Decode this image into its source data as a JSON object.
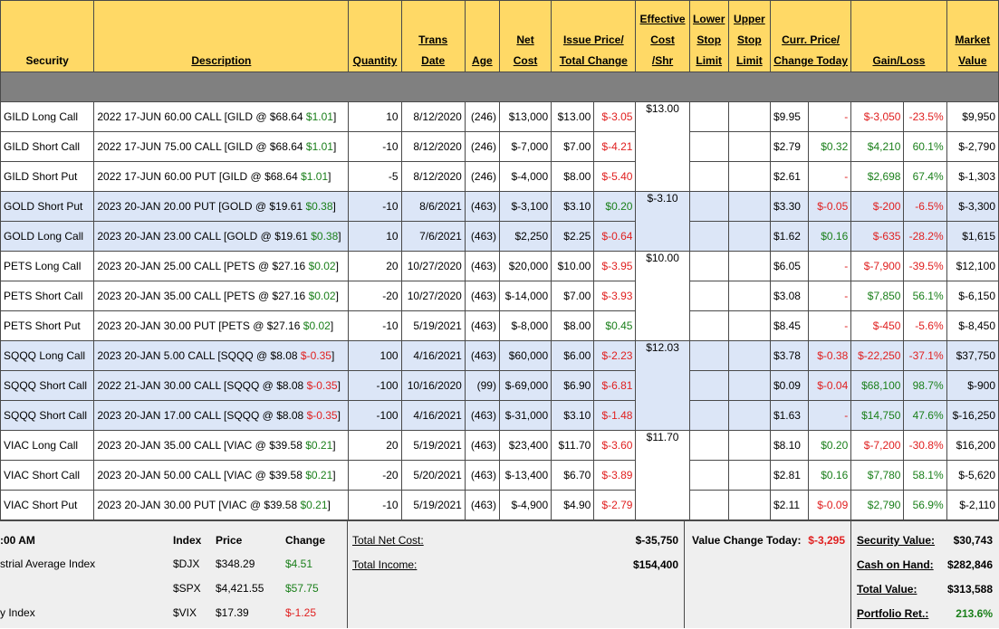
{
  "headers": {
    "security": "Security",
    "description": "Description",
    "quantity": "Quantity",
    "trans_1": "Trans",
    "trans_2": "Date",
    "age": "Age",
    "net_1": "Net",
    "net_2": "Cost",
    "issue_1": "Issue Price/",
    "issue_2": "Total Change",
    "eff_1": "Effective",
    "eff_2": "Cost",
    "eff_3": "/Shr",
    "lower_1": "Lower",
    "lower_2": "Stop",
    "lower_3": "Limit",
    "upper_1": "Upper",
    "upper_2": "Stop",
    "upper_3": "Limit",
    "curr_1": "Curr. Price/",
    "curr_2": "Change Today",
    "gain": "Gain/Loss",
    "mv_1": "Market",
    "mv_2": "Value"
  },
  "rows": [
    {
      "security": "GILD Long Call",
      "desc": "2022 17-JUN 60.00 CALL [GILD @ $68.64",
      "desc_chg": "$1.01",
      "desc_pos": true,
      "qty": "10",
      "date": "8/12/2020",
      "age": "(246)",
      "net": "$13,000",
      "issue": "$13.00",
      "tchg": "$-3.05",
      "tchg_pos": false,
      "eff": "$13.00",
      "curr": "$9.95",
      "ctoday": "-",
      "ctoday_cls": "neg",
      "gain": "$-3,050",
      "gain_pos": false,
      "pct": "-23.5%",
      "mv": "$9,950",
      "blue": false
    },
    {
      "security": "GILD Short Call",
      "desc": "2022 17-JUN 75.00 CALL [GILD @ $68.64",
      "desc_chg": "$1.01",
      "desc_pos": true,
      "qty": "-10",
      "date": "8/12/2020",
      "age": "(246)",
      "net": "$-7,000",
      "issue": "$7.00",
      "tchg": "$-4.21",
      "tchg_pos": false,
      "eff": "",
      "curr": "$2.79",
      "ctoday": "$0.32",
      "ctoday_cls": "pos",
      "gain": "$4,210",
      "gain_pos": true,
      "pct": "60.1%",
      "mv": "$-2,790",
      "blue": false
    },
    {
      "security": "GILD Short Put",
      "desc": "2022 17-JUN 60.00 PUT [GILD @ $68.64",
      "desc_chg": "$1.01",
      "desc_pos": true,
      "qty": "-5",
      "date": "8/12/2020",
      "age": "(246)",
      "net": "$-4,000",
      "issue": "$8.00",
      "tchg": "$-5.40",
      "tchg_pos": false,
      "eff": "",
      "curr": "$2.61",
      "ctoday": "-",
      "ctoday_cls": "neg",
      "gain": "$2,698",
      "gain_pos": true,
      "pct": "67.4%",
      "mv": "$-1,303",
      "blue": false
    },
    {
      "security": "GOLD Short Put",
      "desc": "2023 20-JAN 20.00 PUT [GOLD @ $19.61",
      "desc_chg": "$0.38",
      "desc_pos": true,
      "qty": "-10",
      "date": "8/6/2021",
      "age": "(463)",
      "net": "$-3,100",
      "issue": "$3.10",
      "tchg": "$0.20",
      "tchg_pos": true,
      "eff": "$-3.10",
      "curr": "$3.30",
      "ctoday": "$-0.05",
      "ctoday_cls": "neg",
      "gain": "$-200",
      "gain_pos": false,
      "pct": "-6.5%",
      "mv": "$-3,300",
      "blue": true
    },
    {
      "security": "GOLD Long Call",
      "desc": "2023 20-JAN 23.00 CALL [GOLD @ $19.61",
      "desc_chg": "$0.38",
      "desc_pos": true,
      "qty": "10",
      "date": "7/6/2021",
      "age": "(463)",
      "net": "$2,250",
      "issue": "$2.25",
      "tchg": "$-0.64",
      "tchg_pos": false,
      "eff": "",
      "curr": "$1.62",
      "ctoday": "$0.16",
      "ctoday_cls": "pos",
      "gain": "$-635",
      "gain_pos": false,
      "pct": "-28.2%",
      "mv": "$1,615",
      "blue": true
    },
    {
      "security": "PETS Long Call",
      "desc": "2023 20-JAN 25.00 CALL [PETS @ $27.16",
      "desc_chg": "$0.02",
      "desc_pos": true,
      "qty": "20",
      "date": "10/27/2020",
      "age": "(463)",
      "net": "$20,000",
      "issue": "$10.00",
      "tchg": "$-3.95",
      "tchg_pos": false,
      "eff": "$10.00",
      "curr": "$6.05",
      "ctoday": "-",
      "ctoday_cls": "neg",
      "gain": "$-7,900",
      "gain_pos": false,
      "pct": "-39.5%",
      "mv": "$12,100",
      "blue": false
    },
    {
      "security": "PETS Short Call",
      "desc": "2023 20-JAN 35.00 CALL [PETS @ $27.16",
      "desc_chg": "$0.02",
      "desc_pos": true,
      "qty": "-20",
      "date": "10/27/2020",
      "age": "(463)",
      "net": "$-14,000",
      "issue": "$7.00",
      "tchg": "$-3.93",
      "tchg_pos": false,
      "eff": "",
      "curr": "$3.08",
      "ctoday": "-",
      "ctoday_cls": "neg",
      "gain": "$7,850",
      "gain_pos": true,
      "pct": "56.1%",
      "mv": "$-6,150",
      "blue": false
    },
    {
      "security": "PETS Short Put",
      "desc": "2023 20-JAN 30.00 PUT [PETS @ $27.16",
      "desc_chg": "$0.02",
      "desc_pos": true,
      "qty": "-10",
      "date": "5/19/2021",
      "age": "(463)",
      "net": "$-8,000",
      "issue": "$8.00",
      "tchg": "$0.45",
      "tchg_pos": true,
      "eff": "",
      "curr": "$8.45",
      "ctoday": "-",
      "ctoday_cls": "neg",
      "gain": "$-450",
      "gain_pos": false,
      "pct": "-5.6%",
      "mv": "$-8,450",
      "blue": false
    },
    {
      "security": "SQQQ Long Call",
      "desc": "2023 20-JAN 5.00 CALL [SQQQ @ $8.08",
      "desc_chg": "$-0.35",
      "desc_pos": false,
      "qty": "100",
      "date": "4/16/2021",
      "age": "(463)",
      "net": "$60,000",
      "issue": "$6.00",
      "tchg": "$-2.23",
      "tchg_pos": false,
      "eff": "$12.03",
      "curr": "$3.78",
      "ctoday": "$-0.38",
      "ctoday_cls": "neg",
      "gain": "$-22,250",
      "gain_pos": false,
      "pct": "-37.1%",
      "mv": "$37,750",
      "blue": true
    },
    {
      "security": "SQQQ Short Call",
      "desc": "2022 21-JAN 30.00 CALL [SQQQ @ $8.08",
      "desc_chg": "$-0.35",
      "desc_pos": false,
      "qty": "-100",
      "date": "10/16/2020",
      "age": "(99)",
      "net": "$-69,000",
      "issue": "$6.90",
      "tchg": "$-6.81",
      "tchg_pos": false,
      "eff": "",
      "curr": "$0.09",
      "ctoday": "$-0.04",
      "ctoday_cls": "neg",
      "gain": "$68,100",
      "gain_pos": true,
      "pct": "98.7%",
      "mv": "$-900",
      "blue": true
    },
    {
      "security": "SQQQ Short Call",
      "desc": "2023 20-JAN 17.00 CALL [SQQQ @ $8.08",
      "desc_chg": "$-0.35",
      "desc_pos": false,
      "qty": "-100",
      "date": "4/16/2021",
      "age": "(463)",
      "net": "$-31,000",
      "issue": "$3.10",
      "tchg": "$-1.48",
      "tchg_pos": false,
      "eff": "",
      "curr": "$1.63",
      "ctoday": "-",
      "ctoday_cls": "neg",
      "gain": "$14,750",
      "gain_pos": true,
      "pct": "47.6%",
      "mv": "$-16,250",
      "blue": true
    },
    {
      "security": "VIAC Long Call",
      "desc": "2023 20-JAN 35.00 CALL [VIAC @ $39.58",
      "desc_chg": "$0.21",
      "desc_pos": true,
      "qty": "20",
      "date": "5/19/2021",
      "age": "(463)",
      "net": "$23,400",
      "issue": "$11.70",
      "tchg": "$-3.60",
      "tchg_pos": false,
      "eff": "$11.70",
      "curr": "$8.10",
      "ctoday": "$0.20",
      "ctoday_cls": "pos",
      "gain": "$-7,200",
      "gain_pos": false,
      "pct": "-30.8%",
      "mv": "$16,200",
      "blue": false
    },
    {
      "security": "VIAC Short Call",
      "desc": "2023 20-JAN 50.00 CALL [VIAC @ $39.58",
      "desc_chg": "$0.21",
      "desc_pos": true,
      "qty": "-20",
      "date": "5/20/2021",
      "age": "(463)",
      "net": "$-13,400",
      "issue": "$6.70",
      "tchg": "$-3.89",
      "tchg_pos": false,
      "eff": "",
      "curr": "$2.81",
      "ctoday": "$0.16",
      "ctoday_cls": "pos",
      "gain": "$7,780",
      "gain_pos": true,
      "pct": "58.1%",
      "mv": "$-5,620",
      "blue": false
    },
    {
      "security": "VIAC Short Put",
      "desc": "2023 20-JAN 30.00 PUT [VIAC @ $39.58",
      "desc_chg": "$0.21",
      "desc_pos": true,
      "qty": "-10",
      "date": "5/19/2021",
      "age": "(463)",
      "net": "$-4,900",
      "issue": "$4.90",
      "tchg": "$-2.79",
      "tchg_pos": false,
      "eff": "",
      "curr": "$2.11",
      "ctoday": "$-0.09",
      "ctoday_cls": "neg",
      "gain": "$2,790",
      "gain_pos": true,
      "pct": "56.9%",
      "mv": "$-2,110",
      "blue": false
    }
  ],
  "summary": {
    "time_label": ":00 AM",
    "index_hdr": "Index",
    "price_hdr": "Price",
    "change_hdr": "Change",
    "indices": [
      {
        "name": "strial Average Index",
        "sym": "$DJX",
        "price": "$348.29",
        "chg": "$4.51",
        "pos": true
      },
      {
        "name": "",
        "sym": "$SPX",
        "price": "$4,421.55",
        "chg": "$57.75",
        "pos": true
      },
      {
        "name": "y Index",
        "sym": "$VIX",
        "price": "$17.39",
        "chg": "$-1.25",
        "pos": false
      }
    ],
    "total_net_cost_label": "Total Net Cost:",
    "total_net_cost": "$-35,750",
    "total_income_label": "Total Income:",
    "total_income": "$154,400",
    "value_change_label": "Value Change Today:",
    "value_change": "$-3,295",
    "security_value_label": "Security Value:",
    "security_value": "$30,743",
    "cash_label": "Cash on Hand:",
    "cash": "$282,846",
    "total_value_label": "Total Value:",
    "total_value": "$313,588",
    "portfolio_ret_label": "Portfolio Ret.:",
    "portfolio_ret": "213.6%"
  },
  "colors": {
    "header_bg": "#ffd966",
    "spacer_bg": "#808080",
    "highlight_bg": "#dce6f7",
    "positive": "#1a7f1a",
    "negative": "#e02020"
  }
}
